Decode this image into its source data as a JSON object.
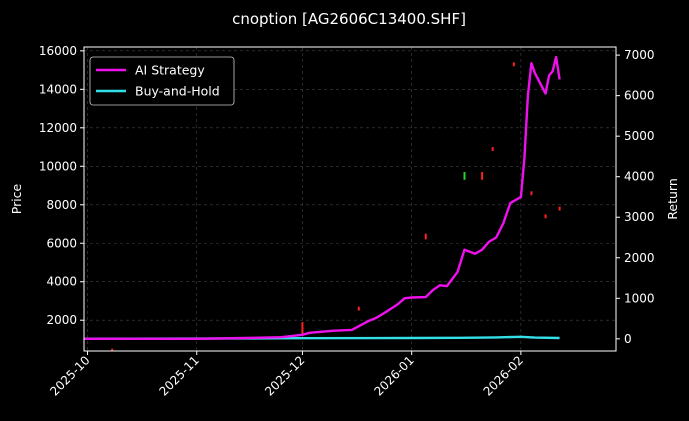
{
  "chart_data": {
    "type": "line",
    "title": "cnoption [AG2606C13400.SHF]",
    "ylabel": "Price",
    "y2label": "Return",
    "xlim": [
      "2025-09-30",
      "2026-02-28"
    ],
    "ylim": [
      400,
      16200
    ],
    "y2lim": [
      -300,
      7200
    ],
    "yticks": [
      2000,
      4000,
      6000,
      8000,
      10000,
      12000,
      14000,
      16000
    ],
    "y2ticks": [
      0,
      1000,
      2000,
      3000,
      4000,
      5000,
      6000,
      7000
    ],
    "xticks": [
      "2025-10",
      "2025-11",
      "2025-12",
      "2026-01",
      "2026-02"
    ],
    "xtick_dates": [
      "2025-10-01",
      "2025-11-01",
      "2025-12-01",
      "2026-01-01",
      "2026-02-01"
    ],
    "grid": true,
    "legend": "top-left",
    "series": [
      {
        "name": "AI Strategy",
        "axis": "right",
        "color": "#ee11ee",
        "x": [
          "2025-09-30",
          "2025-10-15",
          "2025-11-01",
          "2025-11-15",
          "2025-11-25",
          "2025-12-01",
          "2025-12-03",
          "2025-12-10",
          "2025-12-15",
          "2025-12-20",
          "2025-12-22",
          "2025-12-25",
          "2025-12-28",
          "2025-12-30",
          "2026-01-01",
          "2026-01-05",
          "2026-01-07",
          "2026-01-09",
          "2026-01-11",
          "2026-01-14",
          "2026-01-16",
          "2026-01-19",
          "2026-01-21",
          "2026-01-23",
          "2026-01-25",
          "2026-01-27",
          "2026-01-29",
          "2026-02-01",
          "2026-02-02",
          "2026-02-03",
          "2026-02-04",
          "2026-02-05",
          "2026-02-08",
          "2026-02-09",
          "2026-02-10",
          "2026-02-11",
          "2026-02-12"
        ],
        "values": [
          0,
          0,
          0,
          20,
          40,
          100,
          150,
          200,
          220,
          450,
          520,
          680,
          850,
          1000,
          1020,
          1030,
          1200,
          1320,
          1300,
          1650,
          2200,
          2100,
          2200,
          2400,
          2500,
          2850,
          3350,
          3500,
          4450,
          6000,
          6800,
          6550,
          6050,
          6500,
          6600,
          6950,
          6400
        ]
      },
      {
        "name": "Buy-and-Hold",
        "axis": "right",
        "color": "#33e0e8",
        "x": [
          "2025-09-30",
          "2025-11-01",
          "2025-12-01",
          "2026-01-01",
          "2026-01-15",
          "2026-01-25",
          "2026-02-01",
          "2026-02-05",
          "2026-02-12"
        ],
        "values": [
          0,
          5,
          15,
          20,
          25,
          35,
          50,
          30,
          20
        ]
      }
    ],
    "price_marks": [
      {
        "x": "2025-10-08",
        "low": 420,
        "high": 520,
        "color": "#ff2020"
      },
      {
        "x": "2025-12-01",
        "low": 1300,
        "high": 1900,
        "color": "#ff2020"
      },
      {
        "x": "2025-12-17",
        "low": 2500,
        "high": 2700,
        "color": "#ff2020"
      },
      {
        "x": "2026-01-05",
        "low": 6200,
        "high": 6500,
        "color": "#ff2020"
      },
      {
        "x": "2026-01-16",
        "low": 9300,
        "high": 9700,
        "color": "#22dd22"
      },
      {
        "x": "2026-01-21",
        "low": 9300,
        "high": 9700,
        "color": "#ff2020"
      },
      {
        "x": "2026-01-24",
        "low": 10800,
        "high": 11000,
        "color": "#ff2020"
      },
      {
        "x": "2026-01-30",
        "low": 15200,
        "high": 15400,
        "color": "#ff2020"
      },
      {
        "x": "2026-02-04",
        "low": 8500,
        "high": 8700,
        "color": "#ff2020"
      },
      {
        "x": "2026-02-08",
        "low": 7300,
        "high": 7500,
        "color": "#ff2020"
      },
      {
        "x": "2026-02-12",
        "low": 7700,
        "high": 7900,
        "color": "#ff2020"
      }
    ]
  }
}
